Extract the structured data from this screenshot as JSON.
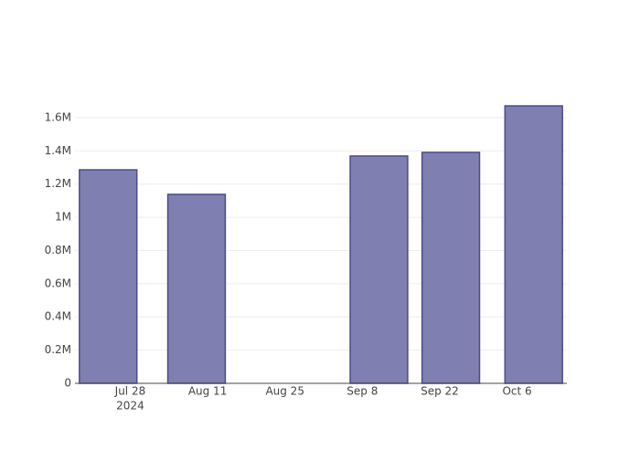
{
  "chart_data": {
    "type": "bar",
    "x": [
      "2024-07-24",
      "2024-08-09",
      "2024-09-11",
      "2024-09-24",
      "2024-10-09"
    ],
    "values": [
      1286000,
      1138000,
      1369000,
      1391000,
      1671000
    ],
    "color": "#7f7fb1",
    "edge_color": "#4b4b8c",
    "xlim": [
      "2024-07-18",
      "2024-10-15"
    ],
    "xticks": [
      {
        "value": "2024-07-28",
        "label": "Jul 28"
      },
      {
        "value": "2024-08-11",
        "label": "Aug 11"
      },
      {
        "value": "2024-08-25",
        "label": "Aug 25"
      },
      {
        "value": "2024-09-08",
        "label": "Sep 8"
      },
      {
        "value": "2024-09-22",
        "label": "Sep 22"
      },
      {
        "value": "2024-10-06",
        "label": "Oct 6"
      }
    ],
    "xtick_year": "2024",
    "ylim": [
      0,
      1759000
    ],
    "yticks": [
      0,
      {
        "value": 200000,
        "label": "0.2M"
      },
      {
        "value": 400000,
        "label": "0.4M"
      },
      {
        "value": 600000,
        "label": "0.6M"
      },
      {
        "value": 800000,
        "label": "0.8M"
      },
      {
        "value": 1000000,
        "label": "1M"
      },
      {
        "value": 1200000,
        "label": "1.2M"
      },
      {
        "value": 1400000,
        "label": "1.4M"
      },
      {
        "value": 1600000,
        "label": "1.6M"
      }
    ],
    "grid": true
  }
}
